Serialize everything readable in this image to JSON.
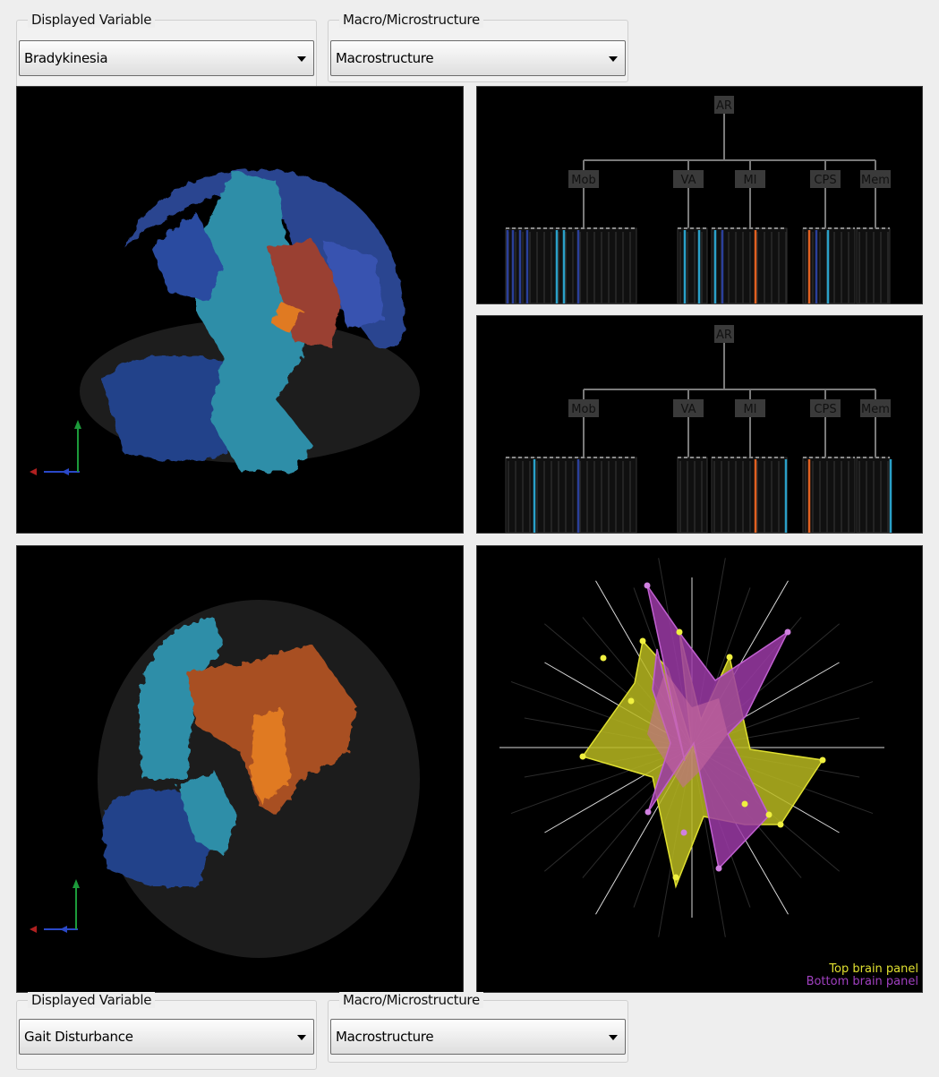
{
  "top_controls": {
    "displayed_variable": {
      "label": "Displayed Variable",
      "value": "Bradykinesia"
    },
    "macro_micro": {
      "label": "Macro/Microstructure",
      "value": "Macrostructure"
    }
  },
  "bottom_controls": {
    "displayed_variable": {
      "label": "Displayed Variable",
      "value": "Gait Disturbance"
    },
    "macro_micro": {
      "label": "Macro/Microstructure",
      "value": "Macrostructure"
    }
  },
  "trees": {
    "root": "AR",
    "categories": [
      "Mob",
      "VA",
      "MI",
      "CPS",
      "Mem"
    ]
  },
  "legend": {
    "top": {
      "text": "Top brain panel",
      "color": "#e0e030"
    },
    "bottom": {
      "text": "Bottom brain panel",
      "color": "#a040c0"
    }
  },
  "colors": {
    "dark_blue": "#2a3f9a",
    "light_blue": "#2aa0c8",
    "orange": "#e06020",
    "yellow": "#d8d820",
    "magenta": "#a040b0"
  },
  "icons": {
    "axis_gizmo": "axes-icon",
    "dropdown": "chevron-down-icon"
  }
}
